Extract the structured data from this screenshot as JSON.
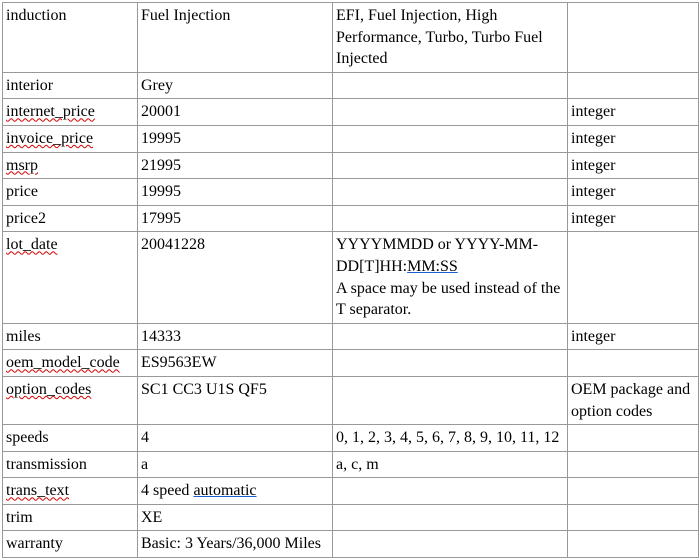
{
  "cols": [
    "c1",
    "c2",
    "c3",
    "c4"
  ],
  "rows": [
    {
      "f": [
        {
          "t": "induction"
        }
      ],
      "v": [
        {
          "t": "Fuel Injection"
        }
      ],
      "n": [
        {
          "t": "EFI, Fuel Injection, High Performance, Turbo, Turbo Fuel Injected"
        }
      ],
      "d": []
    },
    {
      "f": [
        {
          "t": "interior"
        }
      ],
      "v": [
        {
          "t": "Grey"
        }
      ],
      "n": [],
      "d": []
    },
    {
      "f": [
        {
          "t": "internet_price",
          "c": "sp"
        }
      ],
      "v": [
        {
          "t": "20001"
        }
      ],
      "n": [],
      "d": [
        {
          "t": "integer"
        }
      ]
    },
    {
      "f": [
        {
          "t": "invoice_price",
          "c": "sp"
        }
      ],
      "v": [
        {
          "t": "19995"
        }
      ],
      "n": [],
      "d": [
        {
          "t": "integer"
        }
      ]
    },
    {
      "f": [
        {
          "t": "msrp",
          "c": "sp"
        }
      ],
      "v": [
        {
          "t": "21995"
        }
      ],
      "n": [],
      "d": [
        {
          "t": "integer"
        }
      ]
    },
    {
      "f": [
        {
          "t": "price"
        }
      ],
      "v": [
        {
          "t": "19995"
        }
      ],
      "n": [],
      "d": [
        {
          "t": "integer"
        }
      ]
    },
    {
      "f": [
        {
          "t": "price2"
        }
      ],
      "v": [
        {
          "t": "17995"
        }
      ],
      "n": [],
      "d": [
        {
          "t": "integer"
        }
      ]
    },
    {
      "f": [
        {
          "t": "lot_date",
          "c": "sp"
        }
      ],
      "v": [
        {
          "t": "20041228"
        }
      ],
      "n": [
        {
          "t": "YYYYMMDD or YYYY-MM-DD[T]HH:"
        },
        {
          "t": "MM:SS",
          "c": "lnk"
        },
        {
          "t": "\nA space may be used instead of the T separator."
        }
      ],
      "d": []
    },
    {
      "f": [
        {
          "t": "miles"
        }
      ],
      "v": [
        {
          "t": "14333"
        }
      ],
      "n": [],
      "d": [
        {
          "t": "integer"
        }
      ]
    },
    {
      "f": [
        {
          "t": "oem_model_code",
          "c": "sp"
        }
      ],
      "v": [
        {
          "t": "ES9563EW"
        }
      ],
      "n": [],
      "d": []
    },
    {
      "f": [
        {
          "t": "option_codes",
          "c": "sp"
        }
      ],
      "v": [
        {
          "t": "SC1 CC3 U1S QF5"
        }
      ],
      "n": [],
      "d": [
        {
          "t": "OEM package and option codes"
        }
      ]
    },
    {
      "f": [
        {
          "t": "speeds"
        }
      ],
      "v": [
        {
          "t": "4"
        }
      ],
      "n": [
        {
          "t": "0, 1, 2, 3, 4, 5, 6, 7, 8, 9, 10, 11, 12"
        }
      ],
      "d": []
    },
    {
      "f": [
        {
          "t": "transmission"
        }
      ],
      "v": [
        {
          "t": "a"
        }
      ],
      "n": [
        {
          "t": "a, c, m"
        }
      ],
      "d": []
    },
    {
      "f": [
        {
          "t": "trans_text",
          "c": "sp"
        }
      ],
      "v": [
        {
          "t": "4 speed "
        },
        {
          "t": "automatic",
          "c": "lnk"
        }
      ],
      "n": [],
      "d": []
    },
    {
      "f": [
        {
          "t": "trim"
        }
      ],
      "v": [
        {
          "t": "XE"
        }
      ],
      "n": [],
      "d": []
    },
    {
      "f": [
        {
          "t": "warranty"
        }
      ],
      "v": [
        {
          "t": "Basic: 3 Years/36,000 Miles"
        }
      ],
      "n": [],
      "d": []
    }
  ]
}
